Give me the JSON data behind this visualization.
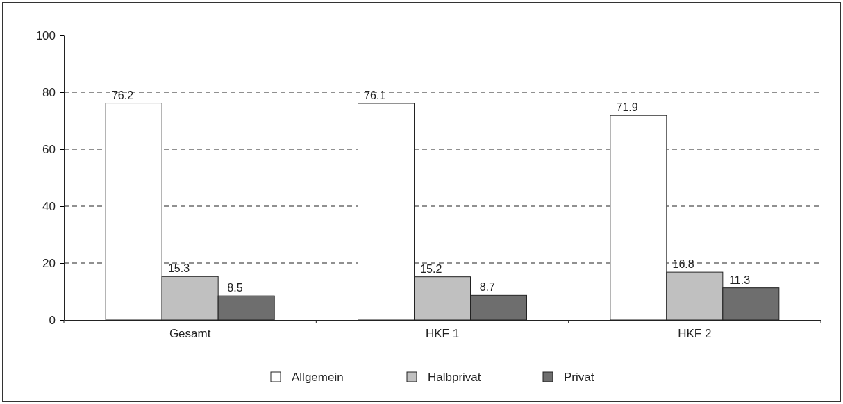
{
  "chart_data": {
    "type": "bar",
    "categories": [
      "Gesamt",
      "HKF 1",
      "HKF 2"
    ],
    "series": [
      {
        "name": "Allgemein",
        "color": "#ffffff",
        "values": [
          76.2,
          76.1,
          71.9
        ]
      },
      {
        "name": "Halbprivat",
        "color": "#c0c0c0",
        "values": [
          15.3,
          15.2,
          16.8
        ]
      },
      {
        "name": "Privat",
        "color": "#6e6e6e",
        "values": [
          8.5,
          8.7,
          11.3
        ]
      }
    ],
    "ylim": [
      0,
      100
    ],
    "yticks": [
      0,
      20,
      40,
      60,
      80,
      100
    ],
    "grid": "y",
    "line_style": "dashed",
    "legend": "bottom",
    "data_labels": true
  }
}
